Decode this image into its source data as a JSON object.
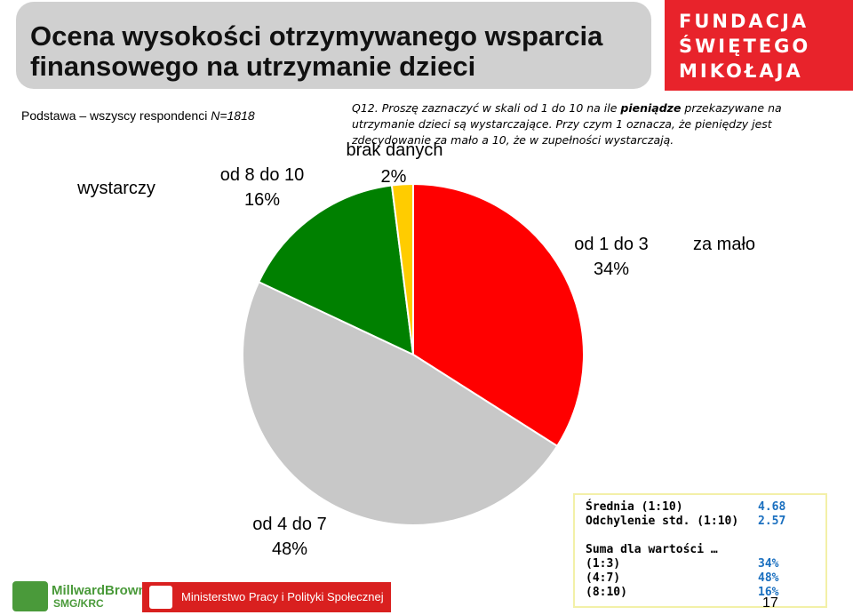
{
  "title": "Ocena wysokości otrzymywanego wsparcia finansowego na utrzymanie dzieci",
  "logo_fsm": {
    "line1": "FUNDACJA",
    "line2": "ŚWIĘTEGO",
    "line3": "MIKOŁAJA"
  },
  "basis": {
    "prefix": "Podstawa  –  wszyscy respondenci ",
    "n": "N=1818"
  },
  "question": {
    "part1": "Q12. Proszę zaznaczyć w skali od 1 do 10 na ile ",
    "bold": "pieniądze",
    "part2": " przekazywane na utrzymanie dzieci są wystarczające. Przy czym 1 oznacza, że pieniędzy jest zdecydowanie za mało a 10, że w zupełności wystarczają."
  },
  "group_labels": {
    "left": "wystarczy",
    "right": "za mało"
  },
  "chart_data": {
    "type": "pie",
    "start_angle_deg": 0,
    "direction": "clockwise",
    "slices": [
      {
        "name": "od 1 do 3",
        "value": 34,
        "label": "34%",
        "color": "#ff0000"
      },
      {
        "name": "od 4 do 7",
        "value": 48,
        "label": "48%",
        "color": "#c8c8c8"
      },
      {
        "name": "od 8 do 10",
        "value": 16,
        "label": "16%",
        "color": "#008000"
      },
      {
        "name": "brak danych",
        "value": 2,
        "label": "2%",
        "color": "#ffcc00"
      }
    ]
  },
  "stats": {
    "mean_label": "Średnia (1:10)",
    "mean_value": "4.68",
    "sd_label": "Odchylenie std. (1:10)",
    "sd_value": "2.57",
    "sum_label": "Suma dla wartości …",
    "r1_label": "(1:3)",
    "r1_value": "34%",
    "r2_label": "(4:7)",
    "r2_value": "48%",
    "r3_label": "(8:10)",
    "r3_value": "16%"
  },
  "page_number": "17",
  "logo_mb": {
    "name": "MillwardBrown",
    "sub": "SMG/KRC"
  },
  "logo_mpips": "Ministerstwo Pracy i Polityki Społecznej",
  "colors": {
    "title_bg": "#d0d0d0",
    "fsm_red": "#e8232b",
    "stats_value": "#1a6fbf",
    "stats_border": "#f3f0a8"
  }
}
